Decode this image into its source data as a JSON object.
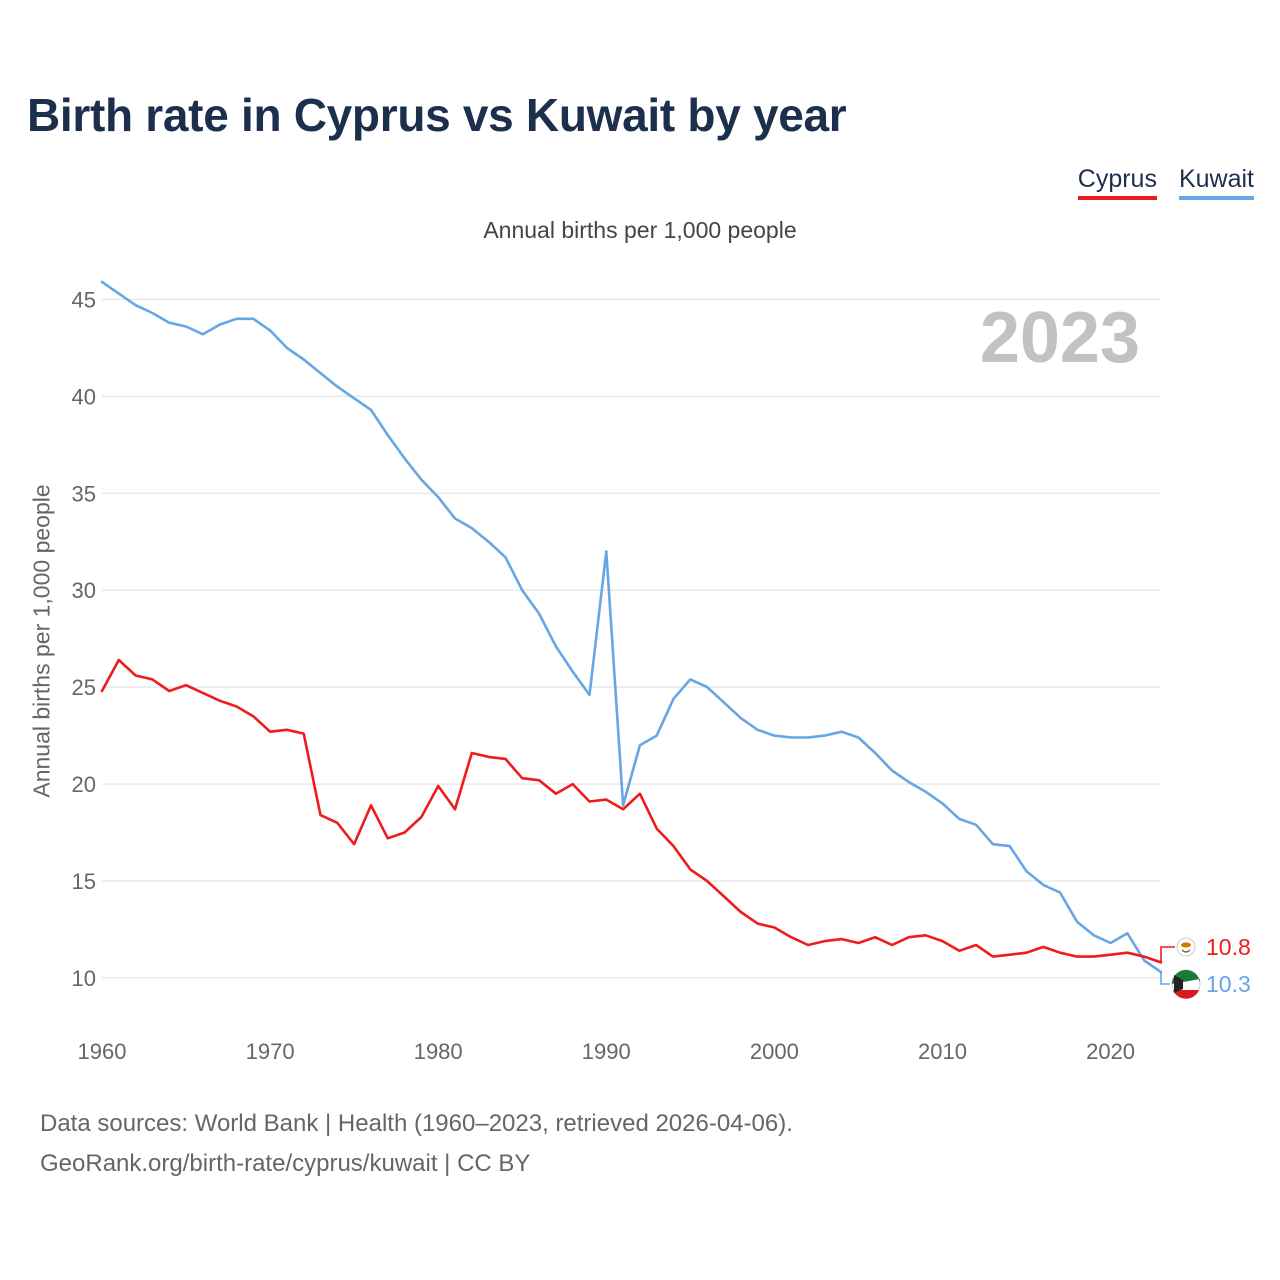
{
  "header": {
    "title": "Birth rate in Cyprus vs Kuwait by year",
    "subtitle": "Annual births per 1,000 people"
  },
  "legend": {
    "cyprus": "Cyprus",
    "kuwait": "Kuwait"
  },
  "footer": {
    "sources": "Data sources: World Bank | Health (1960–2023, retrieved 2026-04-06).",
    "credit": "GeoRank.org/birth-rate/cyprus/kuwait | CC BY"
  },
  "colors": {
    "cyprus": "#ee1c1c",
    "kuwait": "#66a6e3",
    "title": "#1c2f4d",
    "grid": "#e6e6e6"
  },
  "chart_data": {
    "type": "line",
    "title": "Birth rate in Cyprus vs Kuwait by year",
    "subtitle": "Annual births per 1,000 people",
    "xlabel": "",
    "ylabel": "Annual births per 1,000 people",
    "xlim": [
      1960,
      2023
    ],
    "ylim": [
      8.5,
      46
    ],
    "x_ticks": [
      1960,
      1970,
      1980,
      1990,
      2000,
      2010,
      2020
    ],
    "y_ticks": [
      10,
      15,
      20,
      25,
      30,
      35,
      40,
      45
    ],
    "grid": true,
    "legend_position": "top-right",
    "current_year_label": "2023",
    "x": [
      1960,
      1961,
      1962,
      1963,
      1964,
      1965,
      1966,
      1967,
      1968,
      1969,
      1970,
      1971,
      1972,
      1973,
      1974,
      1975,
      1976,
      1977,
      1978,
      1979,
      1980,
      1981,
      1982,
      1983,
      1984,
      1985,
      1986,
      1987,
      1988,
      1989,
      1990,
      1991,
      1992,
      1993,
      1994,
      1995,
      1996,
      1997,
      1998,
      1999,
      2000,
      2001,
      2002,
      2003,
      2004,
      2005,
      2006,
      2007,
      2008,
      2009,
      2010,
      2011,
      2012,
      2013,
      2014,
      2015,
      2016,
      2017,
      2018,
      2019,
      2020,
      2021,
      2022,
      2023
    ],
    "series": [
      {
        "name": "Cyprus",
        "color": "#ee1c1c",
        "end_label": "10.8",
        "values": [
          24.8,
          26.4,
          25.6,
          25.4,
          24.8,
          25.1,
          24.7,
          24.3,
          24.0,
          23.5,
          22.7,
          22.8,
          22.6,
          18.4,
          18.0,
          16.9,
          18.9,
          17.2,
          17.5,
          18.3,
          19.9,
          18.7,
          21.6,
          21.4,
          21.3,
          20.3,
          20.2,
          19.5,
          20.0,
          19.1,
          19.2,
          18.7,
          19.5,
          17.7,
          16.8,
          15.6,
          15.0,
          14.2,
          13.4,
          12.8,
          12.6,
          12.1,
          11.7,
          11.9,
          12.0,
          11.8,
          12.1,
          11.7,
          12.1,
          12.2,
          11.9,
          11.4,
          11.7,
          11.1,
          11.2,
          11.3,
          11.6,
          11.3,
          11.1,
          11.1,
          11.2,
          11.3,
          11.1,
          10.8
        ]
      },
      {
        "name": "Kuwait",
        "color": "#66a6e3",
        "end_label": "10.3",
        "values": [
          45.9,
          45.3,
          44.7,
          44.3,
          43.8,
          43.6,
          43.2,
          43.7,
          44.0,
          44.0,
          43.4,
          42.5,
          41.9,
          41.2,
          40.5,
          39.9,
          39.3,
          38.0,
          36.8,
          35.7,
          34.8,
          33.7,
          33.2,
          32.5,
          31.7,
          30.0,
          28.8,
          27.1,
          25.8,
          24.6,
          32.0,
          18.9,
          22.0,
          22.5,
          24.4,
          25.4,
          25.0,
          24.2,
          23.4,
          22.8,
          22.5,
          22.4,
          22.4,
          22.5,
          22.7,
          22.4,
          21.6,
          20.7,
          20.1,
          19.6,
          19.0,
          18.2,
          17.9,
          16.9,
          16.8,
          15.5,
          14.8,
          14.4,
          12.9,
          12.2,
          11.8,
          12.3,
          10.9,
          10.3
        ]
      }
    ]
  }
}
